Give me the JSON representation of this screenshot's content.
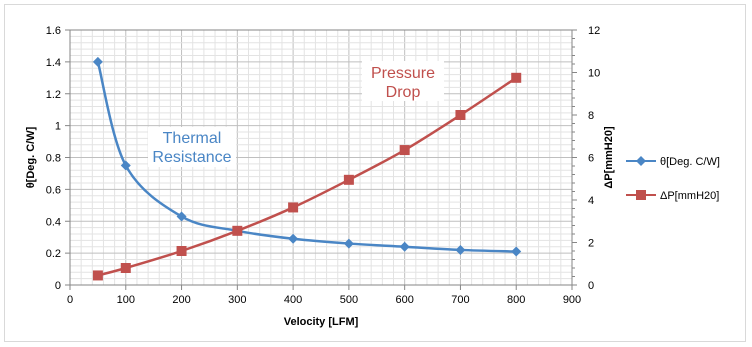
{
  "chart_data": {
    "type": "line",
    "xlabel": "Velocity [LFM]",
    "ylabel": "θ[Deg. C/W]",
    "y2label": "ΔP[mmH20]",
    "xlim": [
      0,
      900
    ],
    "xticks": [
      0,
      100,
      200,
      300,
      400,
      500,
      600,
      700,
      800,
      900
    ],
    "ylim": [
      0,
      1.6
    ],
    "yticks": [
      "0",
      "0.2",
      "0.4",
      "0.6",
      "0.8",
      "1",
      "1.2",
      "1.4",
      "1.6"
    ],
    "ytick_values": [
      0,
      0.2,
      0.4,
      0.6,
      0.8,
      1,
      1.2,
      1.4,
      1.6
    ],
    "y2lim": [
      0,
      12
    ],
    "y2ticks": [
      0,
      2,
      4,
      6,
      8,
      10,
      12
    ],
    "grid": "major and minor",
    "legend_position": "right",
    "series": [
      {
        "name": "θ[Deg. C/W]",
        "axis": "left",
        "color": "#4a86c5",
        "marker": "diamond",
        "x": [
          50,
          100,
          200,
          300,
          400,
          500,
          600,
          700,
          800
        ],
        "values": [
          1.4,
          0.75,
          0.43,
          0.34,
          0.29,
          0.26,
          0.24,
          0.22,
          0.21
        ]
      },
      {
        "name": "ΔP[mmH20]",
        "axis": "right",
        "color": "#c0504d",
        "marker": "square",
        "x": [
          50,
          100,
          200,
          300,
          400,
          500,
          600,
          700,
          800
        ],
        "values": [
          0.45,
          0.8,
          1.6,
          2.55,
          3.65,
          4.95,
          6.35,
          8.0,
          9.75
        ]
      }
    ],
    "annotations": [
      {
        "lines": [
          "Thermal",
          "Resistance"
        ],
        "color": "#4a86c5"
      },
      {
        "lines": [
          "Pressure",
          "Drop"
        ],
        "color": "#c0504d"
      }
    ]
  }
}
